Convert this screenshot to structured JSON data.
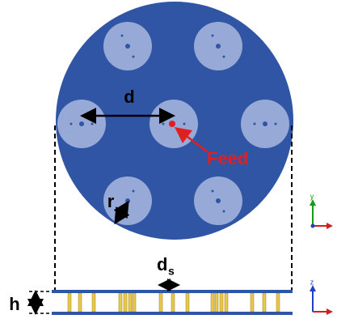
{
  "labels": {
    "d": "d",
    "feed": "Feed",
    "r": "r",
    "h": "h",
    "ds": "d",
    "ds_sub": "s"
  },
  "axes": {
    "top_vertical": "y",
    "bottom_vertical": "z"
  }
}
